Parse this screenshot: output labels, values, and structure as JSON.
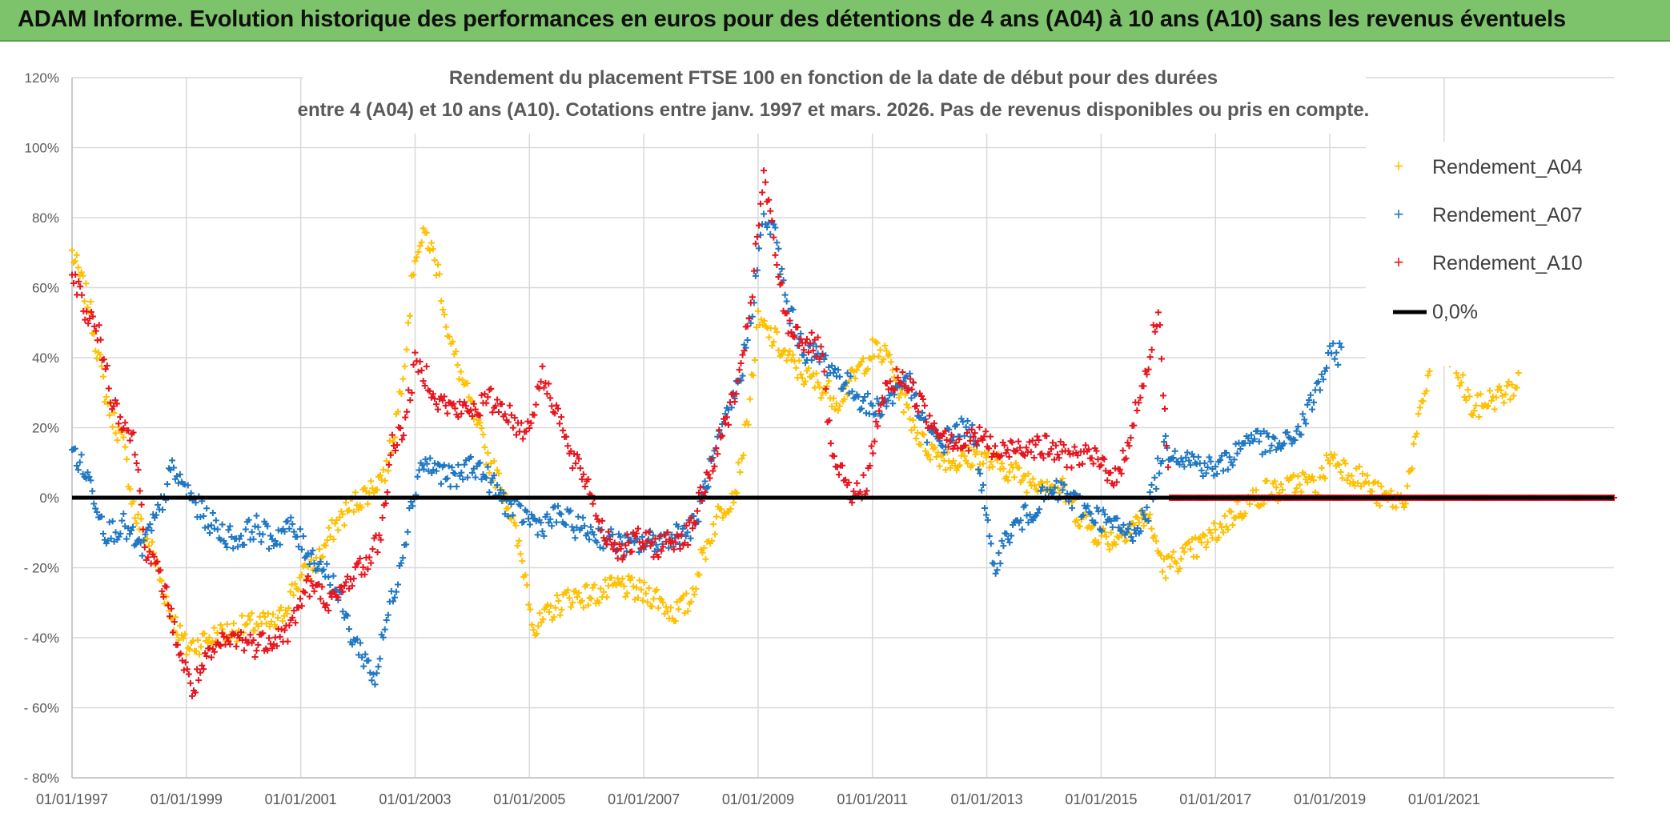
{
  "banner": {
    "title": "ADAM Informe. Evolution historique des performances en euros pour des détentions de 4 ans (A04) à 10 ans (A10) sans les revenus éventuels"
  },
  "chart_data": {
    "type": "scatter",
    "title_lines": [
      "Rendement du placement FTSE 100 en fonction de la date de début pour des durées",
      "entre 4 (A04) et 10 ans (A10). Cotations entre janv. 1997 et mars. 2026. Pas de revenus disponibles ou pris en compte."
    ],
    "x_range_years": [
      1997.0,
      2023.97
    ],
    "ylim": [
      -80,
      120
    ],
    "y_ticks": [
      {
        "v": 120,
        "label": "120%"
      },
      {
        "v": 100,
        "label": "100%"
      },
      {
        "v": 80,
        "label": "80%"
      },
      {
        "v": 60,
        "label": "60%"
      },
      {
        "v": 40,
        "label": "40%"
      },
      {
        "v": 20,
        "label": "20%"
      },
      {
        "v": 0,
        "label": "0%"
      },
      {
        "v": -20,
        "label": "- 20%"
      },
      {
        "v": -40,
        "label": "- 40%"
      },
      {
        "v": -60,
        "label": "- 60%"
      },
      {
        "v": -80,
        "label": "- 80%"
      }
    ],
    "x_ticks": [
      {
        "v": 1997,
        "label": "01/01/1997"
      },
      {
        "v": 1999,
        "label": "01/01/1999"
      },
      {
        "v": 2001,
        "label": "01/01/2001"
      },
      {
        "v": 2003,
        "label": "01/01/2003"
      },
      {
        "v": 2005,
        "label": "01/01/2005"
      },
      {
        "v": 2007,
        "label": "01/01/2007"
      },
      {
        "v": 2009,
        "label": "01/01/2009"
      },
      {
        "v": 2011,
        "label": "01/01/2011"
      },
      {
        "v": 2013,
        "label": "01/01/2013"
      },
      {
        "v": 2015,
        "label": "01/01/2015"
      },
      {
        "v": 2017,
        "label": "01/01/2017"
      },
      {
        "v": 2019,
        "label": "01/01/2019"
      },
      {
        "v": 2021,
        "label": "01/01/2021"
      }
    ],
    "series": [
      {
        "name": "Rendement_A04",
        "color": "#ffc000",
        "points": [
          [
            1997.0,
            70
          ],
          [
            1997.3,
            55
          ],
          [
            1997.6,
            28
          ],
          [
            1997.9,
            15
          ],
          [
            1998.1,
            -5
          ],
          [
            1998.4,
            -15
          ],
          [
            1998.7,
            -32
          ],
          [
            1999.0,
            -43
          ],
          [
            1999.4,
            -40
          ],
          [
            1999.8,
            -38
          ],
          [
            2000.2,
            -36
          ],
          [
            2000.6,
            -36
          ],
          [
            2000.9,
            -25
          ],
          [
            2001.3,
            -18
          ],
          [
            2001.6,
            -8
          ],
          [
            2001.9,
            -2
          ],
          [
            2002.2,
            2
          ],
          [
            2002.5,
            8
          ],
          [
            2002.7,
            25
          ],
          [
            2002.85,
            45
          ],
          [
            2003.0,
            70
          ],
          [
            2003.2,
            75
          ],
          [
            2003.4,
            65
          ],
          [
            2003.6,
            45
          ],
          [
            2003.8,
            35
          ],
          [
            2004.0,
            25
          ],
          [
            2004.3,
            10
          ],
          [
            2004.6,
            0
          ],
          [
            2004.9,
            -20
          ],
          [
            2005.1,
            -38
          ],
          [
            2005.4,
            -32
          ],
          [
            2005.7,
            -28
          ],
          [
            2006.0,
            -28
          ],
          [
            2006.3,
            -27
          ],
          [
            2006.6,
            -25
          ],
          [
            2006.9,
            -27
          ],
          [
            2007.2,
            -28
          ],
          [
            2007.5,
            -33
          ],
          [
            2007.8,
            -30
          ],
          [
            2008.0,
            -18
          ],
          [
            2008.3,
            -5
          ],
          [
            2008.6,
            2
          ],
          [
            2008.8,
            20
          ],
          [
            2009.0,
            50
          ],
          [
            2009.3,
            45
          ],
          [
            2009.5,
            40
          ],
          [
            2009.8,
            35
          ],
          [
            2010.1,
            32
          ],
          [
            2010.4,
            28
          ],
          [
            2010.7,
            35
          ],
          [
            2011.0,
            42
          ],
          [
            2011.3,
            40
          ],
          [
            2011.6,
            25
          ],
          [
            2011.9,
            15
          ],
          [
            2012.2,
            12
          ],
          [
            2012.5,
            10
          ],
          [
            2012.8,
            12
          ],
          [
            2013.1,
            10
          ],
          [
            2013.4,
            8
          ],
          [
            2013.7,
            5
          ],
          [
            2014.0,
            5
          ],
          [
            2014.3,
            3
          ],
          [
            2014.6,
            -5
          ],
          [
            2014.9,
            -10
          ],
          [
            2015.2,
            -12
          ],
          [
            2015.5,
            -8
          ],
          [
            2015.8,
            -5
          ],
          [
            2016.1,
            -20
          ],
          [
            2016.4,
            -17
          ],
          [
            2016.7,
            -14
          ],
          [
            2017.0,
            -10
          ],
          [
            2017.3,
            -5
          ],
          [
            2017.6,
            -1
          ],
          [
            2017.9,
            2
          ],
          [
            2018.2,
            2
          ],
          [
            2018.5,
            5
          ],
          [
            2018.8,
            3
          ],
          [
            2019.0,
            12
          ],
          [
            2019.3,
            8
          ],
          [
            2019.6,
            5
          ],
          [
            2019.9,
            0
          ],
          [
            2020.3,
            -1
          ],
          [
            2020.8,
            42
          ],
          [
            2021.1,
            40
          ],
          [
            2021.3,
            33
          ],
          [
            2021.5,
            25
          ],
          [
            2021.8,
            28
          ],
          [
            2022.1,
            30
          ],
          [
            2022.3,
            33
          ]
        ]
      },
      {
        "name": "Rendement_A07",
        "color": "#1f77c4",
        "points": [
          [
            1997.0,
            14
          ],
          [
            1997.3,
            5
          ],
          [
            1997.6,
            -10
          ],
          [
            1997.9,
            -8
          ],
          [
            1998.2,
            -15
          ],
          [
            1998.5,
            -5
          ],
          [
            1998.75,
            8
          ],
          [
            1999.0,
            2
          ],
          [
            1999.3,
            -5
          ],
          [
            1999.6,
            -10
          ],
          [
            1999.9,
            -12
          ],
          [
            2000.2,
            -8
          ],
          [
            2000.5,
            -12
          ],
          [
            2000.8,
            -8
          ],
          [
            2001.1,
            -15
          ],
          [
            2001.4,
            -20
          ],
          [
            2001.6,
            -25
          ],
          [
            2001.9,
            -40
          ],
          [
            2002.1,
            -45
          ],
          [
            2002.3,
            -52
          ],
          [
            2002.5,
            -35
          ],
          [
            2002.7,
            -22
          ],
          [
            2002.9,
            -5
          ],
          [
            2003.1,
            10
          ],
          [
            2003.4,
            8
          ],
          [
            2003.7,
            5
          ],
          [
            2004.0,
            10
          ],
          [
            2004.3,
            5
          ],
          [
            2004.6,
            -2
          ],
          [
            2004.9,
            -5
          ],
          [
            2005.2,
            -8
          ],
          [
            2005.5,
            -5
          ],
          [
            2005.8,
            -8
          ],
          [
            2006.1,
            -10
          ],
          [
            2006.4,
            -12
          ],
          [
            2006.7,
            -14
          ],
          [
            2007.0,
            -13
          ],
          [
            2007.3,
            -12
          ],
          [
            2007.6,
            -10
          ],
          [
            2007.9,
            -8
          ],
          [
            2008.1,
            5
          ],
          [
            2008.4,
            20
          ],
          [
            2008.7,
            35
          ],
          [
            2008.9,
            55
          ],
          [
            2009.1,
            80
          ],
          [
            2009.3,
            75
          ],
          [
            2009.5,
            55
          ],
          [
            2009.8,
            42
          ],
          [
            2010.1,
            40
          ],
          [
            2010.4,
            35
          ],
          [
            2010.7,
            30
          ],
          [
            2011.0,
            25
          ],
          [
            2011.3,
            28
          ],
          [
            2011.6,
            35
          ],
          [
            2011.9,
            20
          ],
          [
            2012.2,
            15
          ],
          [
            2012.5,
            20
          ],
          [
            2012.8,
            18
          ],
          [
            2013.1,
            -20
          ],
          [
            2013.4,
            -10
          ],
          [
            2013.7,
            -5
          ],
          [
            2014.0,
            0
          ],
          [
            2014.3,
            2
          ],
          [
            2014.6,
            -2
          ],
          [
            2014.9,
            -5
          ],
          [
            2015.2,
            -8
          ],
          [
            2015.5,
            -10
          ],
          [
            2015.8,
            -5
          ],
          [
            2016.1,
            15
          ],
          [
            2016.4,
            12
          ],
          [
            2016.7,
            10
          ],
          [
            2017.0,
            8
          ],
          [
            2017.3,
            12
          ],
          [
            2017.6,
            18
          ],
          [
            2017.9,
            15
          ],
          [
            2018.2,
            15
          ],
          [
            2018.5,
            20
          ],
          [
            2018.8,
            32
          ],
          [
            2019.0,
            40
          ],
          [
            2019.2,
            42
          ]
        ]
      },
      {
        "name": "Rendement_A10",
        "color": "#e8141e",
        "points": [
          [
            1997.0,
            65
          ],
          [
            1997.2,
            55
          ],
          [
            1997.5,
            45
          ],
          [
            1997.7,
            28
          ],
          [
            1997.9,
            22
          ],
          [
            1998.1,
            15
          ],
          [
            1998.3,
            -15
          ],
          [
            1998.6,
            -25
          ],
          [
            1998.9,
            -45
          ],
          [
            1999.1,
            -55
          ],
          [
            1999.3,
            -48
          ],
          [
            1999.6,
            -42
          ],
          [
            1999.9,
            -40
          ],
          [
            2000.2,
            -42
          ],
          [
            2000.5,
            -40
          ],
          [
            2000.8,
            -38
          ],
          [
            2001.1,
            -25
          ],
          [
            2001.4,
            -28
          ],
          [
            2001.6,
            -30
          ],
          [
            2001.9,
            -22
          ],
          [
            2002.2,
            -18
          ],
          [
            2002.4,
            -10
          ],
          [
            2002.6,
            15
          ],
          [
            2002.8,
            20
          ],
          [
            2003.0,
            38
          ],
          [
            2003.2,
            35
          ],
          [
            2003.4,
            28
          ],
          [
            2003.7,
            25
          ],
          [
            2004.0,
            25
          ],
          [
            2004.3,
            28
          ],
          [
            2004.6,
            25
          ],
          [
            2004.8,
            20
          ],
          [
            2005.0,
            20
          ],
          [
            2005.2,
            35
          ],
          [
            2005.5,
            25
          ],
          [
            2005.7,
            12
          ],
          [
            2006.0,
            5
          ],
          [
            2006.3,
            -10
          ],
          [
            2006.6,
            -15
          ],
          [
            2006.9,
            -12
          ],
          [
            2007.2,
            -14
          ],
          [
            2007.5,
            -12
          ],
          [
            2007.8,
            -10
          ],
          [
            2008.1,
            5
          ],
          [
            2008.4,
            20
          ],
          [
            2008.7,
            35
          ],
          [
            2008.9,
            60
          ],
          [
            2009.1,
            92
          ],
          [
            2009.3,
            70
          ],
          [
            2009.5,
            50
          ],
          [
            2009.8,
            45
          ],
          [
            2010.1,
            42
          ],
          [
            2010.3,
            10
          ],
          [
            2010.5,
            5
          ],
          [
            2010.7,
            0
          ],
          [
            2010.9,
            5
          ],
          [
            2011.2,
            30
          ],
          [
            2011.5,
            35
          ],
          [
            2011.8,
            28
          ],
          [
            2012.0,
            22
          ],
          [
            2012.3,
            18
          ],
          [
            2012.6,
            15
          ],
          [
            2012.9,
            18
          ],
          [
            2013.2,
            12
          ],
          [
            2013.5,
            15
          ],
          [
            2013.8,
            15
          ],
          [
            2014.1,
            14
          ],
          [
            2014.4,
            12
          ],
          [
            2014.7,
            12
          ],
          [
            2015.0,
            10
          ],
          [
            2015.3,
            5
          ],
          [
            2015.6,
            25
          ],
          [
            2015.8,
            35
          ],
          [
            2016.0,
            55
          ],
          [
            2016.2,
            0
          ],
          [
            2017.0,
            0
          ],
          [
            2018.0,
            0
          ],
          [
            2019.0,
            0
          ],
          [
            2020.0,
            0
          ],
          [
            2021.0,
            0
          ],
          [
            2022.0,
            0
          ],
          [
            2023.0,
            0
          ],
          [
            2023.97,
            0
          ]
        ]
      }
    ],
    "legend": [
      {
        "label": "Rendement_A04",
        "color": "#ffc000",
        "marker": "plus"
      },
      {
        "label": "Rendement_A07",
        "color": "#1f77c4",
        "marker": "plus"
      },
      {
        "label": "Rendement_A10",
        "color": "#e8141e",
        "marker": "plus"
      },
      {
        "label": "0,0%",
        "color": "#000000",
        "marker": "line"
      }
    ],
    "reference_line": {
      "value": 0,
      "label": "0,0%",
      "color": "#000000"
    },
    "grid": true
  }
}
